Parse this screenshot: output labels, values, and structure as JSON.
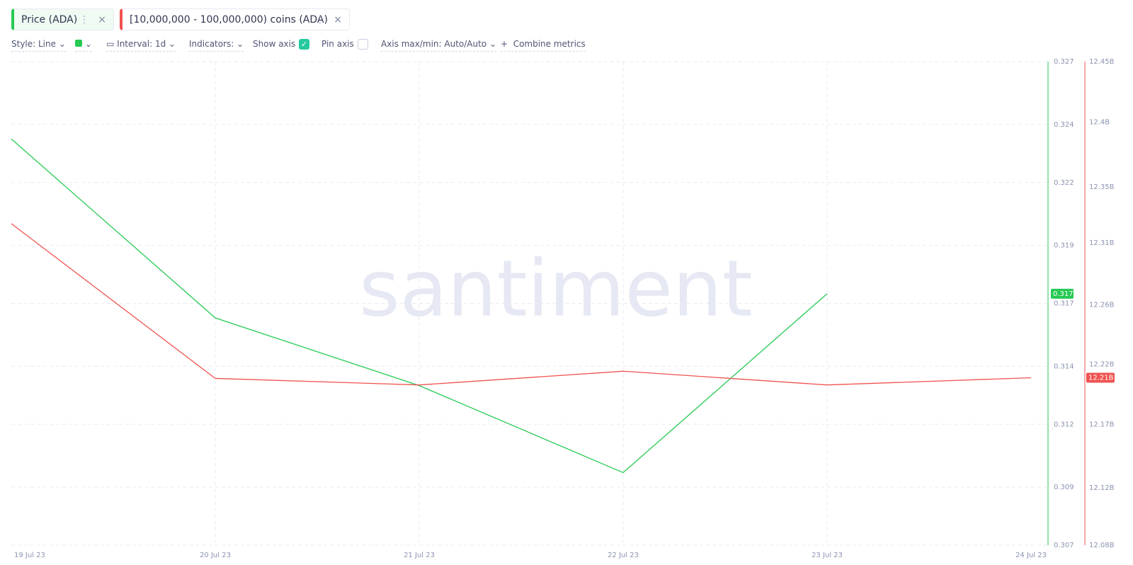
{
  "toolbar": {
    "style": "Style: Line",
    "interval": "Interval: 1d",
    "indicators": "Indicators:",
    "show_axis": "Show axis",
    "pin_axis": "Pin axis",
    "axis_maxmin": "Axis max/min: Auto/Auto",
    "combine": "Combine metrics"
  },
  "chart_data": {
    "type": "line",
    "watermark": "santiment",
    "categories": [
      "19 Jul 23",
      "20 Jul 23",
      "21 Jul 23",
      "22 Jul 23",
      "23 Jul 23",
      "24 Jul 23"
    ],
    "series": [
      {
        "name": "Price (ADA)",
        "color": "#26c953",
        "values": [
          0.3238,
          0.3164,
          0.3136,
          0.31,
          0.3174,
          null
        ],
        "last_value_label": "0.317"
      },
      {
        "name": "[10,000,000 - 100,000,000) coins (ADA)",
        "color": "#ef5350",
        "axis": "y2",
        "values": [
          12326000000,
          12207600000,
          12202600000,
          12213100000,
          12202600000,
          12208100000
        ],
        "last_value_label": "12.21B"
      }
    ],
    "ylim": [
      0.307,
      0.327
    ],
    "yticks": [
      0.307,
      {
        "value": 0.3094,
        "label": "0.309"
      },
      0.312,
      {
        "value": 0.3144,
        "label": "0.314"
      },
      0.317,
      {
        "value": 0.3194,
        "label": "0.319"
      },
      0.322,
      {
        "value": 0.3244,
        "label": "0.324"
      },
      0.327
    ],
    "y2lim": [
      12080000000,
      12450000000
    ],
    "y2ticks": [
      {
        "value": 12080000000,
        "label": "12.08B"
      },
      {
        "value": 12124000000,
        "label": "12.12B"
      },
      {
        "value": 12172500000,
        "label": "12.17B"
      },
      {
        "value": 12218500000,
        "label": "12.22B"
      },
      {
        "value": 12264000000,
        "label": "12.26B"
      },
      {
        "value": 12311200000,
        "label": "12.31B"
      },
      {
        "value": 12354000000,
        "label": "12.35B"
      },
      {
        "value": 12403700000,
        "label": "12.4B"
      },
      {
        "value": 12450000000,
        "label": "12.45B"
      }
    ],
    "grid": true
  }
}
